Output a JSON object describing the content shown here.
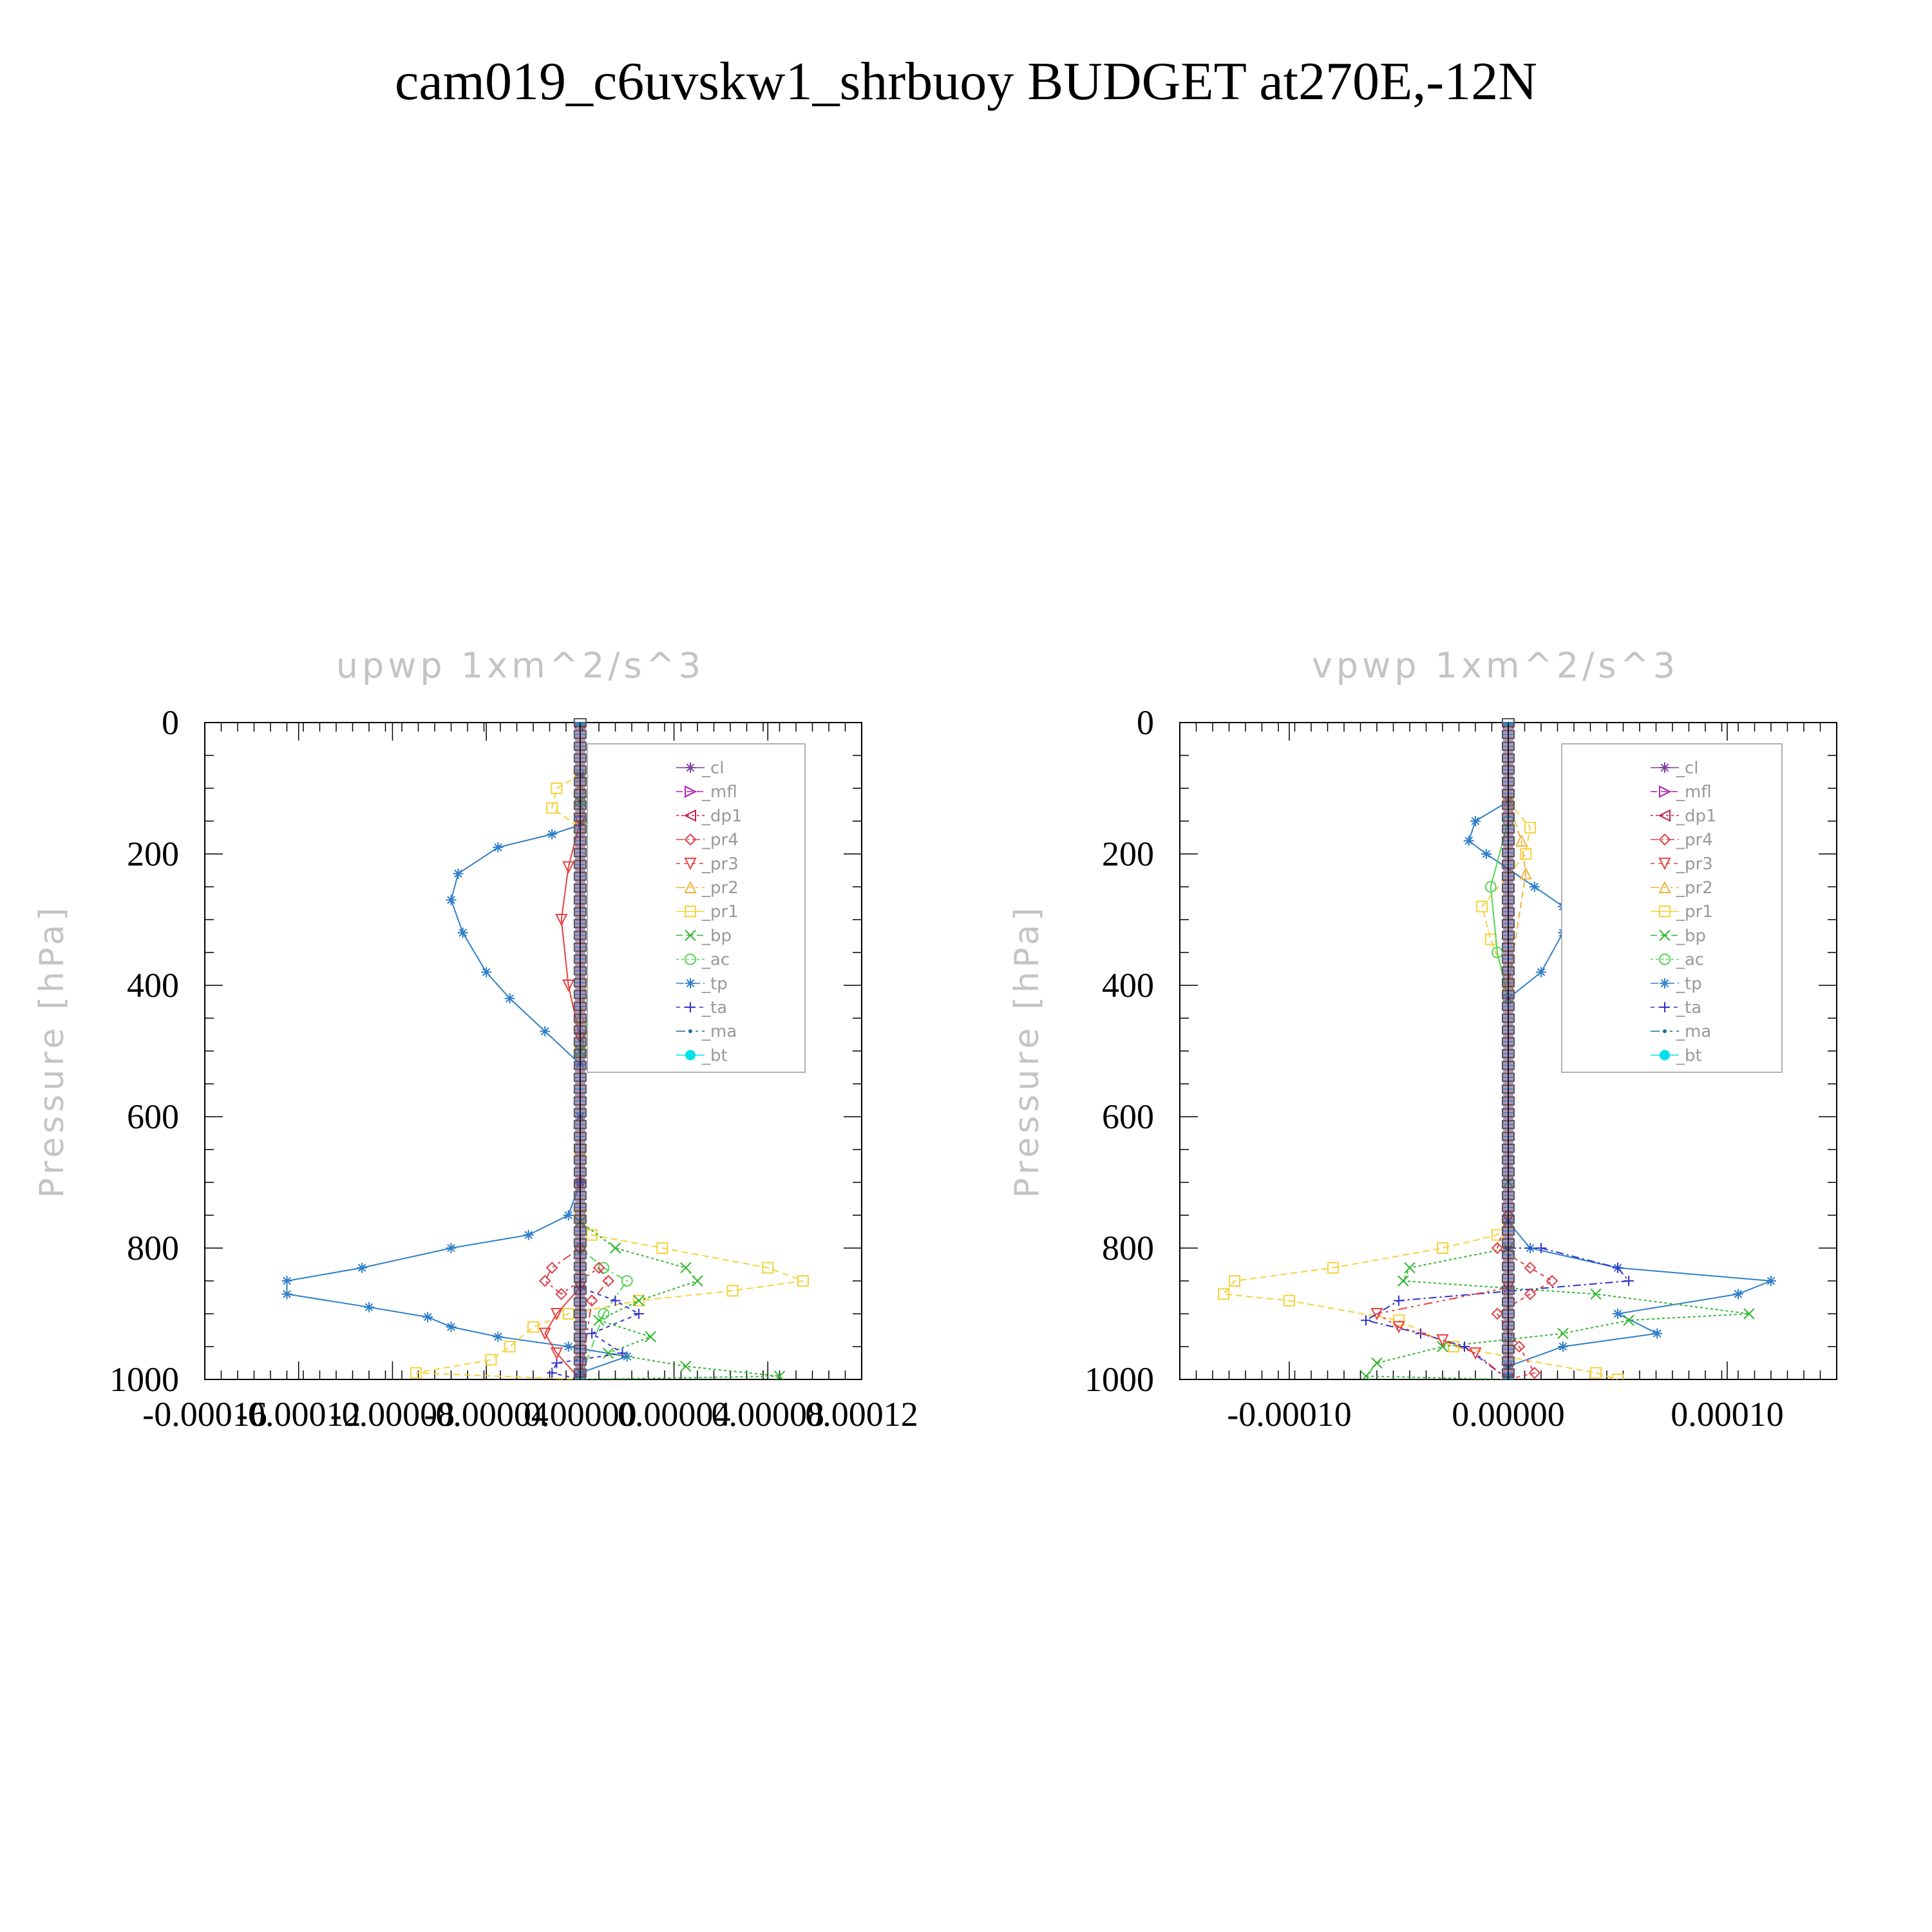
{
  "title": "cam019_c6uvskw1_shrbuoy  BUDGET at270E,-12N",
  "legend_entries": [
    "_cl",
    "_mfl",
    "_dp1",
    "_pr4",
    "_pr3",
    "_pr2",
    "_pr1",
    "_bp",
    "_ac",
    "_tp",
    "_ta",
    "_ma",
    "_bt"
  ],
  "series_colors": {
    "_cl": "#7e3f9f",
    "_mfl": "#b01fb0",
    "_dp1": "#cc1b45",
    "_pr4": "#e0404a",
    "_pr3": "#e84040",
    "_pr2": "#f2b23c",
    "_pr1": "#f5d23a",
    "_bp": "#2db82d",
    "_ac": "#56d456",
    "_tp": "#2f7fc8",
    "_ta": "#3333cc",
    "_ma": "#1a6fa0",
    "_bt": "#00e0e8"
  },
  "chart_data": [
    {
      "type": "line",
      "title": "upwp   1xm^2/s^3",
      "xlabel": "",
      "ylabel": "Pressure [hPa]",
      "xlim": [
        -0.00016,
        0.00012
      ],
      "ylim": [
        1000,
        0
      ],
      "xticks": [
        "-0.00016",
        "-0.00012",
        "-0.00008",
        "-0.00004",
        "0.00000",
        "0.00004",
        "0.00008",
        "0.00012"
      ],
      "yticks": [
        "0",
        "200",
        "400",
        "600",
        "800",
        "1000"
      ],
      "legend_position": "top-right",
      "series": [
        {
          "name": "_tp",
          "x": [
            0,
            2e-05,
            5e-06,
            -1.2e-05,
            -3.5e-05,
            -5.2e-05,
            -5.5e-05,
            -5e-05,
            -4e-05,
            -3e-05,
            -1.5e-05,
            0,
            0,
            0,
            -5e-06,
            -2.2e-05,
            -5.5e-05,
            -9.3e-05,
            -0.000125,
            -0.000125,
            -9e-05,
            -6.5e-05,
            -5.5e-05,
            -3.5e-05,
            -5e-06,
            2e-05,
            0,
            0
          ],
          "y": [
            80,
            115,
            150,
            170,
            190,
            230,
            270,
            320,
            380,
            420,
            470,
            520,
            600,
            700,
            750,
            780,
            800,
            830,
            850,
            870,
            890,
            905,
            920,
            935,
            950,
            965,
            990,
            1000
          ]
        },
        {
          "name": "_pr1",
          "x": [
            0,
            -1e-05,
            -1.2e-05,
            0,
            1.5e-05,
            1.8e-05,
            1.5e-05,
            1.2e-05,
            8e-06,
            0,
            0,
            0,
            5e-06,
            3.5e-05,
            8e-05,
            9.5e-05,
            6.5e-05,
            2.5e-05,
            -5e-06,
            -2e-05,
            -3e-05,
            -3.8e-05,
            -7e-05,
            0
          ],
          "y": [
            80,
            100,
            130,
            160,
            200,
            230,
            300,
            350,
            420,
            500,
            650,
            750,
            780,
            800,
            830,
            850,
            865,
            880,
            900,
            920,
            950,
            970,
            990,
            1000
          ]
        },
        {
          "name": "_bp",
          "x": [
            0,
            5e-06,
            1e-05,
            1.3e-05,
            1.2e-05,
            8e-06,
            0,
            0,
            1.5e-05,
            4.5e-05,
            5e-05,
            2.5e-05,
            8e-06,
            3e-05,
            1.2e-05,
            4.5e-05,
            8.5e-05,
            0
          ],
          "y": [
            120,
            180,
            230,
            300,
            350,
            420,
            500,
            760,
            800,
            830,
            850,
            880,
            910,
            935,
            960,
            980,
            995,
            1000
          ]
        },
        {
          "name": "_ac",
          "x": [
            0,
            8e-06,
            1.2e-05,
            1e-05,
            5e-06,
            0,
            0,
            1e-05,
            2e-05,
            1e-05,
            0
          ],
          "y": [
            120,
            200,
            250,
            330,
            420,
            500,
            800,
            830,
            850,
            900,
            1000
          ]
        },
        {
          "name": "_ta",
          "x": [
            0,
            0,
            1.5e-05,
            2.5e-05,
            5e-06,
            1.8e-05,
            -1e-05,
            -1.2e-05,
            0
          ],
          "y": [
            700,
            860,
            880,
            900,
            930,
            960,
            975,
            990,
            1000
          ]
        },
        {
          "name": "_pr4",
          "x": [
            0,
            0,
            -1.2e-05,
            -1.5e-05,
            -8e-06,
            8e-06,
            1.2e-05,
            5e-06,
            0
          ],
          "y": [
            700,
            800,
            830,
            850,
            870,
            830,
            850,
            880,
            1000
          ]
        },
        {
          "name": "_pr3",
          "x": [
            0,
            -5e-06,
            -8e-06,
            -5e-06,
            0,
            0,
            -1e-05,
            -1.5e-05,
            -1e-05,
            0
          ],
          "y": [
            150,
            220,
            300,
            400,
            480,
            860,
            900,
            930,
            960,
            1000
          ]
        },
        {
          "name": "_pr2",
          "x": [
            0,
            1e-05,
            1e-05,
            5e-06,
            0,
            0
          ],
          "y": [
            100,
            150,
            250,
            350,
            450,
            1000
          ]
        },
        {
          "name": "_cl",
          "x": [
            0,
            0
          ],
          "y": [
            0,
            1000
          ]
        },
        {
          "name": "_mfl",
          "x": [
            0,
            0
          ],
          "y": [
            0,
            1000
          ]
        },
        {
          "name": "_dp1",
          "x": [
            0,
            0
          ],
          "y": [
            0,
            1000
          ]
        },
        {
          "name": "_ma",
          "x": [
            0,
            0
          ],
          "y": [
            0,
            1000
          ]
        },
        {
          "name": "_bt",
          "x": [
            0,
            0
          ],
          "y": [
            0,
            1000
          ]
        }
      ]
    },
    {
      "type": "line",
      "title": "vpwp   1xm^2/s^3",
      "xlabel": "",
      "ylabel": "Pressure [hPa]",
      "xlim": [
        -0.00015,
        0.00015
      ],
      "ylim": [
        1000,
        0
      ],
      "xticks": [
        "-0.00010",
        "0.00000",
        "0.00010"
      ],
      "yticks": [
        "0",
        "200",
        "400",
        "600",
        "800",
        "1000"
      ],
      "legend_position": "top-right",
      "series": [
        {
          "name": "_tp",
          "x": [
            0,
            -1.5e-05,
            -1.8e-05,
            -1e-05,
            1.2e-05,
            2.5e-05,
            2.5e-05,
            1.5e-05,
            0,
            0,
            1e-05,
            5e-05,
            0.00012,
            0.000105,
            5e-05,
            6.8e-05,
            2.5e-05,
            0,
            0
          ],
          "y": [
            120,
            150,
            180,
            200,
            250,
            280,
            320,
            380,
            420,
            760,
            800,
            830,
            850,
            870,
            900,
            930,
            950,
            980,
            1000
          ]
        },
        {
          "name": "_pr1",
          "x": [
            0,
            1e-05,
            8e-06,
            -1.2e-05,
            -8e-06,
            0,
            0,
            -5e-06,
            -3e-05,
            -8e-05,
            -0.000125,
            -0.00013,
            -0.0001,
            -5e-05,
            -2.5e-05,
            4e-05,
            5e-05
          ],
          "y": [
            120,
            160,
            200,
            280,
            330,
            400,
            760,
            780,
            800,
            830,
            850,
            870,
            880,
            910,
            950,
            990,
            1000
          ]
        },
        {
          "name": "_bp",
          "x": [
            0,
            0,
            -4.5e-05,
            -4.8e-05,
            4e-05,
            0.00011,
            5.5e-05,
            2.5e-05,
            -3e-05,
            -6e-05,
            -6.5e-05,
            0
          ],
          "y": [
            700,
            800,
            830,
            850,
            870,
            900,
            910,
            930,
            950,
            975,
            995,
            1000
          ]
        },
        {
          "name": "_ta",
          "x": [
            0,
            1.5e-05,
            5e-05,
            5.5e-05,
            -5e-05,
            -6.5e-05,
            -4e-05,
            -2e-05,
            0
          ],
          "y": [
            800,
            800,
            830,
            850,
            880,
            910,
            930,
            950,
            1000
          ]
        },
        {
          "name": "_pr4",
          "x": [
            0,
            -5e-06,
            1e-05,
            2e-05,
            1e-05,
            -5e-06,
            5e-06,
            1.2e-05,
            0
          ],
          "y": [
            750,
            800,
            830,
            850,
            870,
            900,
            950,
            990,
            1000
          ]
        },
        {
          "name": "_pr3",
          "x": [
            0,
            -6e-05,
            -5e-05,
            -3e-05,
            -1.5e-05,
            0
          ],
          "y": [
            860,
            900,
            920,
            940,
            960,
            1000
          ]
        },
        {
          "name": "_ac",
          "x": [
            0,
            -8e-06,
            -5e-06,
            0,
            0
          ],
          "y": [
            150,
            250,
            350,
            420,
            1000
          ]
        },
        {
          "name": "_pr2",
          "x": [
            0,
            6e-06,
            8e-06,
            0,
            0
          ],
          "y": [
            120,
            180,
            230,
            400,
            1000
          ]
        },
        {
          "name": "_cl",
          "x": [
            0,
            0
          ],
          "y": [
            0,
            1000
          ]
        },
        {
          "name": "_mfl",
          "x": [
            0,
            0
          ],
          "y": [
            0,
            1000
          ]
        },
        {
          "name": "_dp1",
          "x": [
            0,
            0
          ],
          "y": [
            0,
            1000
          ]
        },
        {
          "name": "_ma",
          "x": [
            0,
            0
          ],
          "y": [
            0,
            1000
          ]
        },
        {
          "name": "_bt",
          "x": [
            0,
            0
          ],
          "y": [
            0,
            1000
          ]
        }
      ]
    }
  ]
}
